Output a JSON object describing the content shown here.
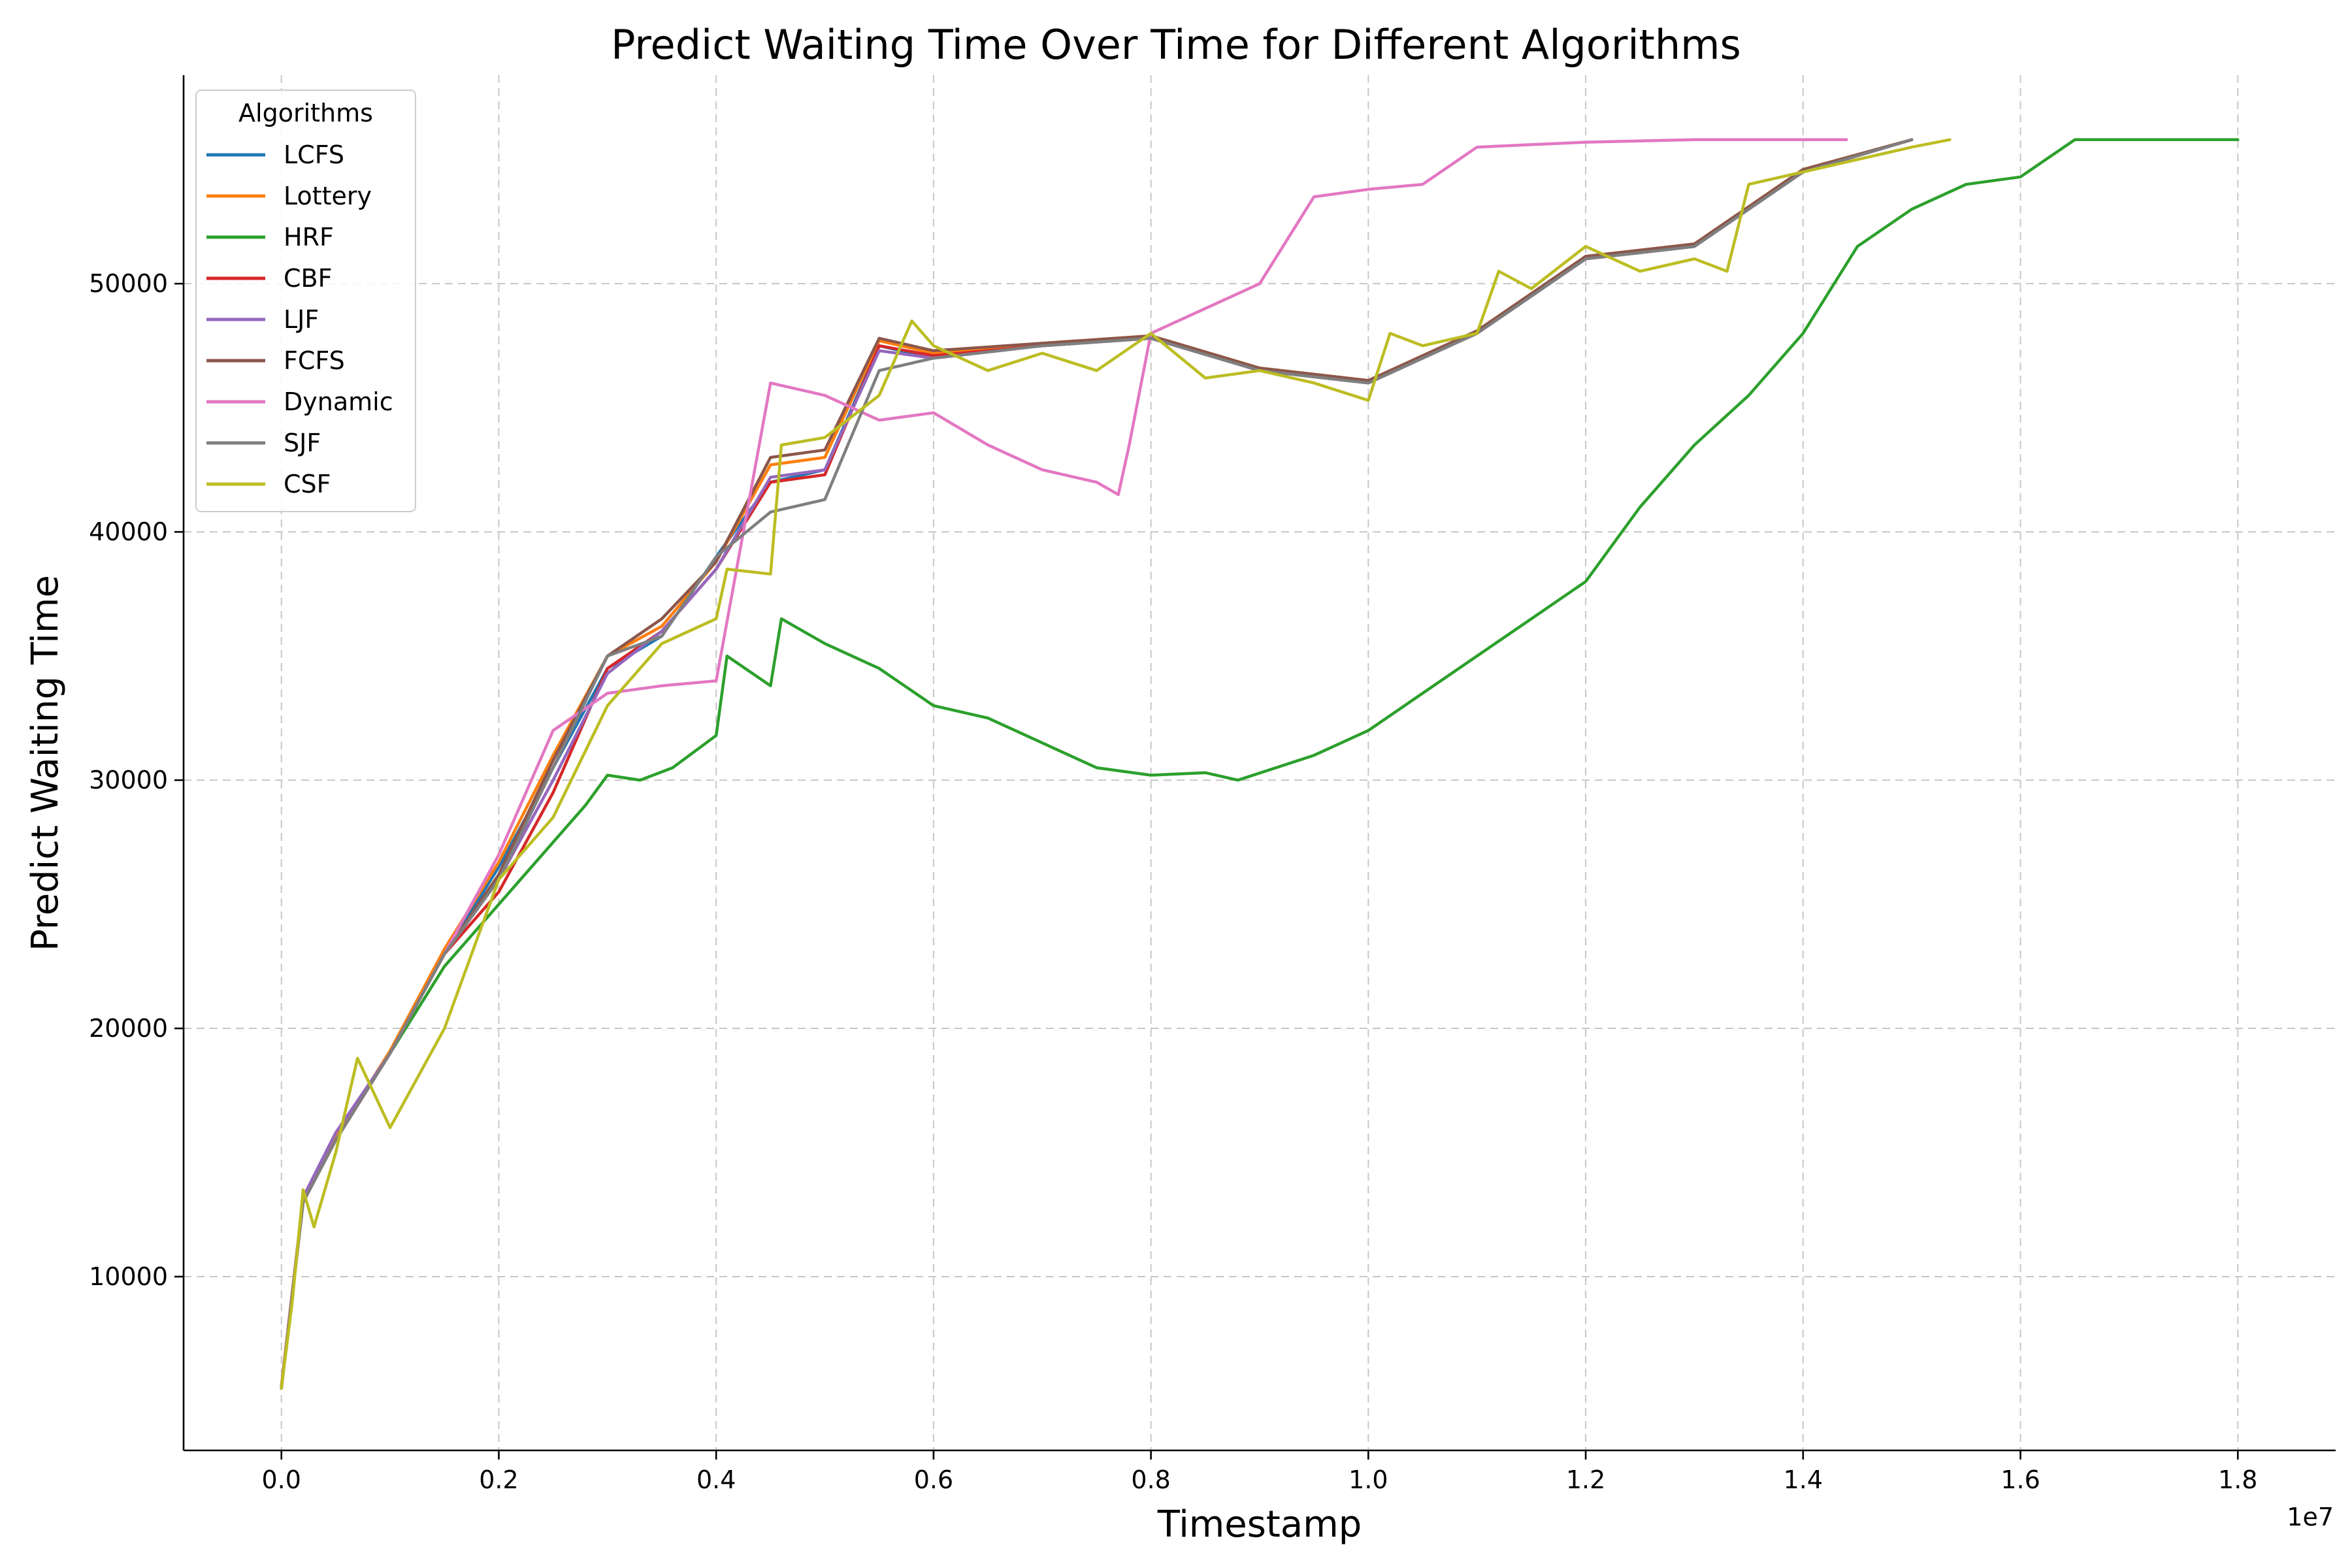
{
  "chart_data": {
    "type": "line",
    "title": "Predict Waiting Time Over Time for Different Algorithms",
    "xlabel": "Timestamp",
    "ylabel": "Predict Waiting Time",
    "x_offset_label": "1e7",
    "xlim": [
      -0.09,
      1.89
    ],
    "ylim": [
      3000,
      58400
    ],
    "x_scale_note": "1e7",
    "xticks": [
      0.0,
      0.2,
      0.4,
      0.6,
      0.8,
      1.0,
      1.2,
      1.4,
      1.6,
      1.8
    ],
    "xtick_labels": [
      "0.0",
      "0.2",
      "0.4",
      "0.6",
      "0.8",
      "1.0",
      "1.2",
      "1.4",
      "1.6",
      "1.8"
    ],
    "yticks": [
      10000,
      20000,
      30000,
      40000,
      50000
    ],
    "ytick_labels": [
      "10000",
      "20000",
      "30000",
      "40000",
      "50000"
    ],
    "grid": true,
    "legend": {
      "title": "Algorithms",
      "position": "top-left"
    },
    "series": [
      {
        "name": "LCFS",
        "color": "#1f77b4",
        "x": [
          0.0,
          0.02,
          0.05,
          0.1,
          0.15,
          0.2,
          0.25,
          0.3,
          0.35,
          0.4,
          0.45,
          0.5,
          0.55,
          0.6,
          0.7,
          0.8,
          0.9,
          1.0,
          1.1,
          1.2,
          1.3,
          1.4,
          1.5
        ],
        "y": [
          5500,
          13000,
          15500,
          19000,
          23000,
          26500,
          30500,
          34500,
          35800,
          39000,
          42000,
          42500,
          47500,
          47000,
          47500,
          47800,
          46500,
          46000,
          48000,
          51000,
          51500,
          54500,
          55800
        ]
      },
      {
        "name": "Lottery",
        "color": "#ff7f0e",
        "x": [
          0.0,
          0.02,
          0.05,
          0.1,
          0.15,
          0.2,
          0.25,
          0.3,
          0.35,
          0.4,
          0.45,
          0.5,
          0.55,
          0.6,
          0.7,
          0.8,
          0.9,
          1.0,
          1.1,
          1.2,
          1.3,
          1.4,
          1.5
        ],
        "y": [
          5600,
          13200,
          15600,
          19100,
          23200,
          26700,
          31000,
          35000,
          36200,
          38800,
          42700,
          43000,
          47700,
          47200,
          47600,
          47900,
          46600,
          46100,
          48100,
          51100,
          51600,
          54600,
          55800
        ]
      },
      {
        "name": "HRF",
        "color": "#2ca02c",
        "x": [
          0.0,
          0.02,
          0.05,
          0.1,
          0.15,
          0.2,
          0.25,
          0.28,
          0.3,
          0.33,
          0.36,
          0.4,
          0.41,
          0.45,
          0.46,
          0.5,
          0.55,
          0.6,
          0.65,
          0.7,
          0.75,
          0.8,
          0.85,
          0.88,
          0.95,
          1.0,
          1.05,
          1.1,
          1.15,
          1.2,
          1.25,
          1.3,
          1.35,
          1.4,
          1.45,
          1.5,
          1.55,
          1.6,
          1.65,
          1.7,
          1.75,
          1.8
        ],
        "y": [
          5500,
          13000,
          15500,
          19000,
          22500,
          25000,
          27500,
          29000,
          30200,
          30000,
          30500,
          31800,
          35000,
          33800,
          36500,
          35500,
          34500,
          33000,
          32500,
          31500,
          30500,
          30200,
          30300,
          30000,
          31000,
          32000,
          33500,
          35000,
          36500,
          38000,
          41000,
          43500,
          45500,
          48000,
          51500,
          53000,
          54000,
          54300,
          55800,
          55800,
          55800,
          55800
        ]
      },
      {
        "name": "CBF",
        "color": "#d62728",
        "x": [
          0.0,
          0.02,
          0.05,
          0.1,
          0.15,
          0.2,
          0.25,
          0.3,
          0.35,
          0.4,
          0.45,
          0.5,
          0.55,
          0.6,
          0.7,
          0.8,
          0.9,
          1.0,
          1.1,
          1.2,
          1.3,
          1.4,
          1.5
        ],
        "y": [
          5500,
          13000,
          15500,
          19000,
          23000,
          25500,
          29500,
          34500,
          36000,
          38500,
          42000,
          42300,
          47500,
          47100,
          47500,
          47800,
          46500,
          46000,
          48000,
          51000,
          51500,
          54500,
          55800
        ]
      },
      {
        "name": "LJF",
        "color": "#9467bd",
        "x": [
          0.0,
          0.02,
          0.05,
          0.1,
          0.15,
          0.2,
          0.25,
          0.3,
          0.35,
          0.4,
          0.45,
          0.5,
          0.55,
          0.6,
          0.7,
          0.8,
          0.9,
          1.0,
          1.1,
          1.2,
          1.3,
          1.4,
          1.5
        ],
        "y": [
          5500,
          13200,
          15800,
          19000,
          23000,
          26000,
          30000,
          34300,
          36000,
          38500,
          42200,
          42500,
          47300,
          47000,
          47500,
          47800,
          46500,
          46000,
          48000,
          51000,
          51500,
          54500,
          55800
        ]
      },
      {
        "name": "FCFS",
        "color": "#8c564b",
        "x": [
          0.0,
          0.02,
          0.05,
          0.1,
          0.15,
          0.2,
          0.25,
          0.3,
          0.35,
          0.4,
          0.45,
          0.5,
          0.55,
          0.6,
          0.7,
          0.8,
          0.9,
          1.0,
          1.1,
          1.2,
          1.3,
          1.4,
          1.5
        ],
        "y": [
          5500,
          13000,
          15500,
          19000,
          23000,
          26200,
          30800,
          35000,
          36500,
          38800,
          43000,
          43300,
          47800,
          47300,
          47600,
          47900,
          46600,
          46100,
          48100,
          51100,
          51600,
          54600,
          55800
        ]
      },
      {
        "name": "Dynamic",
        "color": "#e377c2",
        "x": [
          0.0,
          0.02,
          0.05,
          0.1,
          0.15,
          0.2,
          0.25,
          0.3,
          0.35,
          0.4,
          0.45,
          0.5,
          0.55,
          0.6,
          0.65,
          0.7,
          0.75,
          0.77,
          0.78,
          0.8,
          0.85,
          0.9,
          0.95,
          1.0,
          1.05,
          1.1,
          1.15,
          1.2,
          1.3,
          1.4,
          1.44
        ],
        "y": [
          5500,
          13000,
          15500,
          19000,
          23000,
          27000,
          32000,
          33500,
          33800,
          34000,
          46000,
          45500,
          44500,
          44800,
          43500,
          42500,
          42000,
          41500,
          43500,
          48000,
          49000,
          50000,
          53500,
          53800,
          54000,
          55500,
          55600,
          55700,
          55800,
          55800,
          55800
        ]
      },
      {
        "name": "SJF",
        "color": "#7f7f7f",
        "x": [
          0.0,
          0.02,
          0.05,
          0.1,
          0.15,
          0.2,
          0.25,
          0.3,
          0.35,
          0.4,
          0.45,
          0.5,
          0.55,
          0.6,
          0.7,
          0.8,
          0.9,
          1.0,
          1.1,
          1.2,
          1.3,
          1.4,
          1.5
        ],
        "y": [
          5500,
          13000,
          15500,
          19000,
          23000,
          26000,
          30500,
          35000,
          35800,
          39000,
          40800,
          41300,
          46500,
          47000,
          47500,
          47800,
          46500,
          46000,
          48000,
          51000,
          51500,
          54500,
          55800
        ]
      },
      {
        "name": "CSF",
        "color": "#bcbd22",
        "x": [
          0.0,
          0.01,
          0.02,
          0.03,
          0.05,
          0.07,
          0.1,
          0.15,
          0.2,
          0.25,
          0.3,
          0.35,
          0.4,
          0.41,
          0.45,
          0.46,
          0.5,
          0.55,
          0.58,
          0.6,
          0.65,
          0.7,
          0.75,
          0.8,
          0.85,
          0.9,
          0.95,
          1.0,
          1.02,
          1.05,
          1.1,
          1.12,
          1.15,
          1.2,
          1.25,
          1.3,
          1.33,
          1.35,
          1.4,
          1.45,
          1.5,
          1.535
        ],
        "y": [
          5500,
          9000,
          13500,
          12000,
          15000,
          18800,
          16000,
          20000,
          26000,
          28500,
          33000,
          35500,
          36500,
          38500,
          38300,
          43500,
          43800,
          45500,
          48500,
          47500,
          46500,
          47200,
          46500,
          48000,
          46200,
          46500,
          46000,
          45300,
          48000,
          47500,
          48000,
          50500,
          49800,
          51500,
          50500,
          51000,
          50500,
          54000,
          54500,
          55000,
          55500,
          55800
        ]
      }
    ]
  }
}
